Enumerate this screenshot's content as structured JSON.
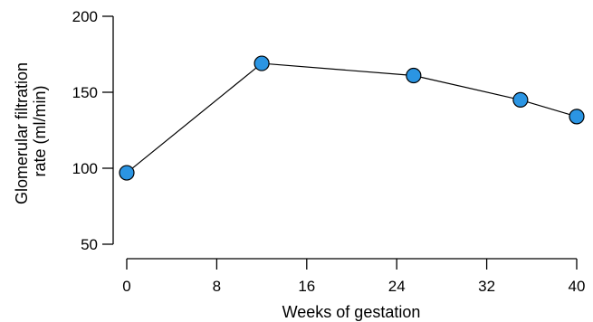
{
  "chart_data": {
    "type": "line",
    "xlabel": "Weeks of gestation",
    "ylabel_lines": [
      "Glomerular filtration",
      "rate (ml/min)"
    ],
    "xlim": [
      0,
      40
    ],
    "ylim": [
      50,
      200
    ],
    "xticks": [
      0,
      8,
      16,
      24,
      32,
      40
    ],
    "yticks": [
      50,
      100,
      150,
      200
    ],
    "grid": false,
    "marker_color": "#2B95E3",
    "series": [
      {
        "x": [
          0,
          12,
          25.5,
          35,
          40
        ],
        "y": [
          97,
          169,
          161,
          145,
          134
        ]
      }
    ]
  }
}
